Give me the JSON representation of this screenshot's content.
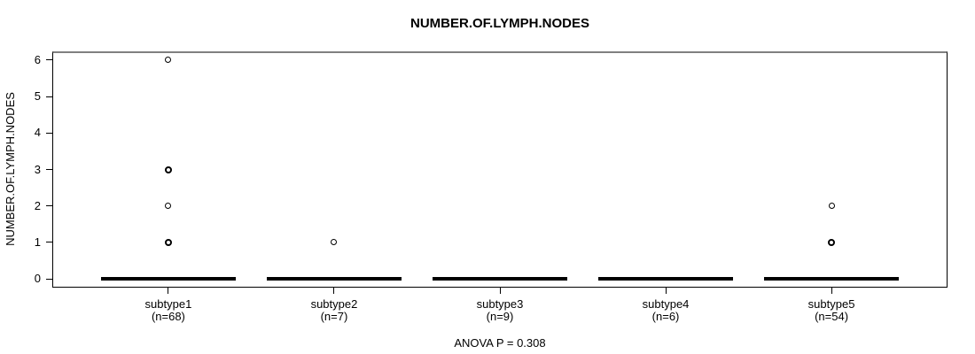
{
  "chart_data": {
    "type": "boxplot",
    "title": "NUMBER.OF.LYMPH.NODES",
    "ylabel": "NUMBER.OF.LYMPH.NODES",
    "xlabel": "",
    "footer": "ANOVA P = 0.308",
    "ylim": [
      0,
      6
    ],
    "yticks": [
      0,
      1,
      2,
      3,
      4,
      5,
      6
    ],
    "grid": false,
    "legend": null,
    "groups": [
      {
        "label": "subtype1",
        "n_label": "(n=68)",
        "n": 68,
        "median": 0,
        "q1": 0,
        "q3": 0,
        "whisker_low": 0,
        "whisker_high": 0,
        "outliers": [
          {
            "value": 6,
            "heavy": false
          },
          {
            "value": 3,
            "heavy": true
          },
          {
            "value": 2,
            "heavy": false
          },
          {
            "value": 1,
            "heavy": true
          }
        ]
      },
      {
        "label": "subtype2",
        "n_label": "(n=7)",
        "n": 7,
        "median": 0,
        "q1": 0,
        "q3": 0,
        "whisker_low": 0,
        "whisker_high": 0,
        "outliers": [
          {
            "value": 1,
            "heavy": false
          }
        ]
      },
      {
        "label": "subtype3",
        "n_label": "(n=9)",
        "n": 9,
        "median": 0,
        "q1": 0,
        "q3": 0,
        "whisker_low": 0,
        "whisker_high": 0,
        "outliers": []
      },
      {
        "label": "subtype4",
        "n_label": "(n=6)",
        "n": 6,
        "median": 0,
        "q1": 0,
        "q3": 0,
        "whisker_low": 0,
        "whisker_high": 0,
        "outliers": []
      },
      {
        "label": "subtype5",
        "n_label": "(n=54)",
        "n": 54,
        "median": 0,
        "q1": 0,
        "q3": 0,
        "whisker_low": 0,
        "whisker_high": 0,
        "outliers": [
          {
            "value": 2,
            "heavy": false
          },
          {
            "value": 1,
            "heavy": true
          }
        ]
      }
    ],
    "colors": {
      "foreground": "#000000",
      "background": "#ffffff",
      "frame_top": "#808080"
    }
  }
}
